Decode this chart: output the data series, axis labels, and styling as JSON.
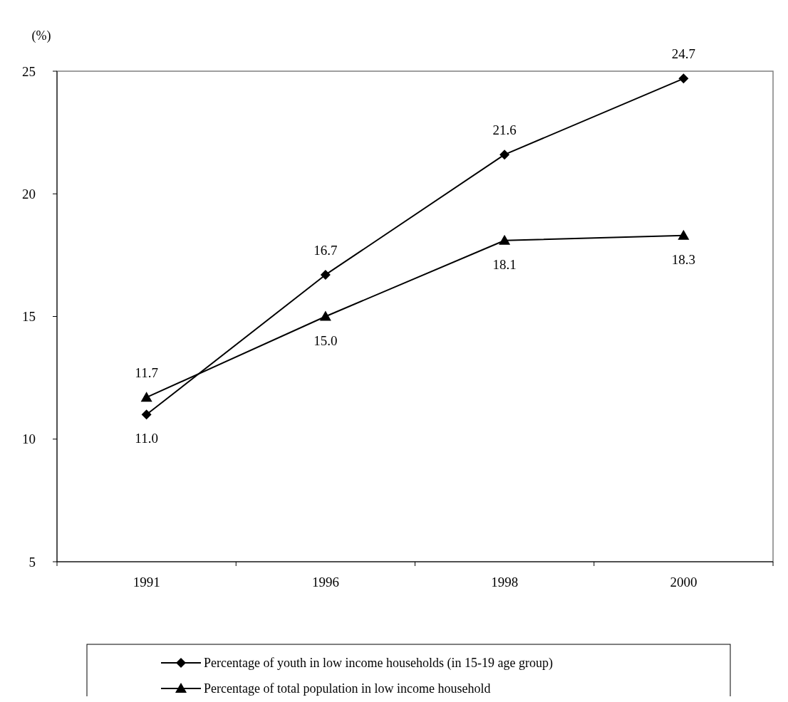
{
  "chart_data": {
    "type": "line",
    "ylabel": "(%)",
    "categories": [
      "1991",
      "1996",
      "1998",
      "2000"
    ],
    "ylim": [
      5,
      25
    ],
    "yticks": [
      5,
      10,
      15,
      20,
      25
    ],
    "grid": false,
    "legend": "bottom",
    "line_style": "solid",
    "series": [
      {
        "name": "Percentage of youth in low income households (in 15-19 age group)",
        "color": "#000000",
        "marker": "diamond",
        "values": [
          11.0,
          16.7,
          21.6,
          24.7
        ],
        "value_labels": [
          "11.0",
          "16.7",
          "21.6",
          "24.7"
        ]
      },
      {
        "name": "Percentage of total population in low income household",
        "color": "#000000",
        "marker": "triangle",
        "values": [
          11.7,
          15.0,
          18.1,
          18.3
        ],
        "value_labels": [
          "11.7",
          "15.0",
          "18.1",
          "18.3"
        ]
      }
    ]
  }
}
